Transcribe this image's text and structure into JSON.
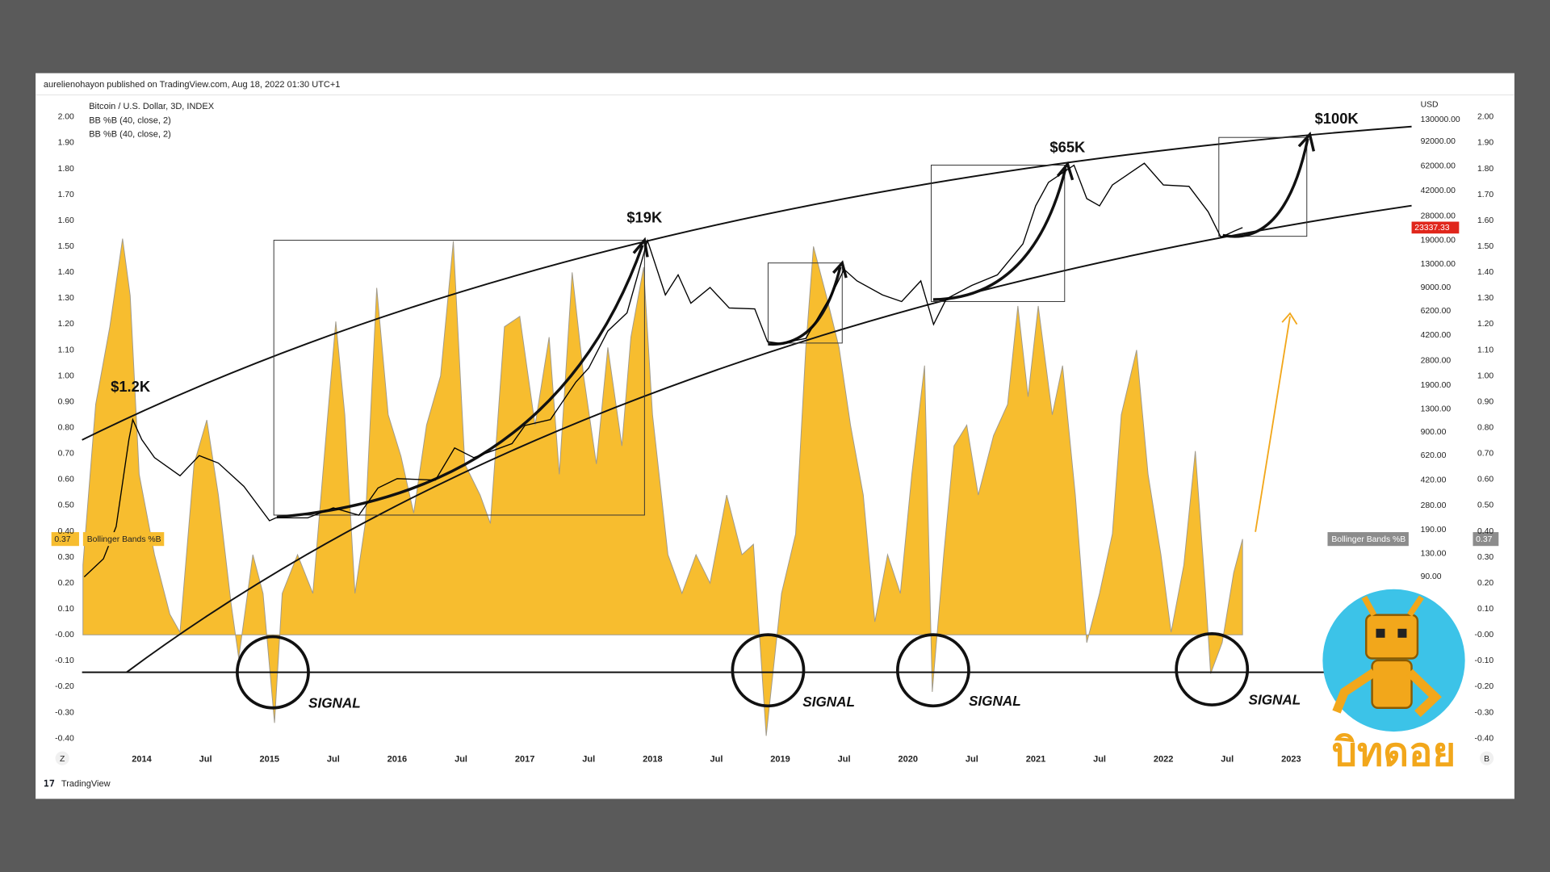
{
  "header": "aurelienohayon published on TradingView.com, Aug 18, 2022 01:30 UTC+1",
  "footer": "TradingView",
  "logo_text": "บิทดอย",
  "axis_buttons": [
    "Z",
    "B"
  ],
  "chart_data": [
    {
      "type": "line",
      "ylog": true,
      "y_label": "USD",
      "xlim": [
        2013.2,
        2023.92
      ],
      "ylim": [
        5.6,
        181000
      ],
      "xticks": [
        2014,
        {
          "value": 2014.5,
          "label": "Jul"
        },
        2015,
        {
          "value": 2015.5,
          "label": "Jul"
        },
        2016,
        {
          "value": 2016.5,
          "label": "Jul"
        },
        2017,
        {
          "value": 2017.5,
          "label": "Jul"
        },
        2018,
        {
          "value": 2018.5,
          "label": "Jul"
        },
        2019,
        {
          "value": 2019.5,
          "label": "Jul"
        },
        2020,
        {
          "value": 2020.5,
          "label": "Jul"
        },
        2021,
        {
          "value": 2021.5,
          "label": "Jul"
        },
        2022,
        {
          "value": 2022.5,
          "label": "Jul"
        },
        2023
      ],
      "yticks": [
        {
          "value": 130000,
          "label": "130000.00"
        },
        {
          "value": 92000,
          "label": "92000.00"
        },
        {
          "value": 62000,
          "label": "62000.00"
        },
        {
          "value": 42000,
          "label": "42000.00"
        },
        {
          "value": 28000,
          "label": "28000.00"
        },
        {
          "value": 19000,
          "label": "19000.00"
        },
        {
          "value": 13000,
          "label": "13000.00"
        },
        {
          "value": 9000,
          "label": "9000.00"
        },
        {
          "value": 6200,
          "label": "6200.00"
        },
        {
          "value": 4200,
          "label": "4200.00"
        },
        {
          "value": 2800,
          "label": "2800.00"
        },
        {
          "value": 1900,
          "label": "1900.00"
        },
        {
          "value": 1300,
          "label": "1300.00"
        },
        {
          "value": 900,
          "label": "900.00"
        },
        {
          "value": 620,
          "label": "620.00"
        },
        {
          "value": 420,
          "label": "420.00"
        },
        {
          "value": 280,
          "label": "280.00"
        },
        {
          "value": 190,
          "label": "190.00"
        },
        {
          "value": 130,
          "label": "130.00"
        },
        {
          "value": 90,
          "label": "90.00"
        }
      ],
      "x": [
        2013.55,
        2013.7,
        2013.8,
        2013.9,
        2013.93,
        2014.0,
        2014.1,
        2014.3,
        2014.45,
        2014.6,
        2014.8,
        2015.0,
        2015.05,
        2015.3,
        2015.5,
        2015.7,
        2015.85,
        2016.0,
        2016.3,
        2016.45,
        2016.6,
        2016.9,
        2017.0,
        2017.2,
        2017.4,
        2017.5,
        2017.65,
        2017.8,
        2017.96,
        2018.1,
        2018.2,
        2018.3,
        2018.45,
        2018.6,
        2018.8,
        2018.9,
        2019.0,
        2019.2,
        2019.4,
        2019.5,
        2019.6,
        2019.8,
        2019.95,
        2020.1,
        2020.2,
        2020.3,
        2020.5,
        2020.7,
        2020.9,
        2021.0,
        2021.1,
        2021.3,
        2021.4,
        2021.5,
        2021.6,
        2021.85,
        2022.0,
        2022.2,
        2022.35,
        2022.45,
        2022.55,
        2022.62
      ],
      "series": [
        {
          "name": "Bitcoin / U.S. Dollar, 3D, INDEX",
          "color": "#000000",
          "values": [
            90,
            120,
            200,
            800,
            1100,
            800,
            600,
            450,
            620,
            550,
            380,
            220,
            230,
            230,
            270,
            240,
            370,
            430,
            420,
            700,
            600,
            750,
            1000,
            1100,
            2000,
            2500,
            4500,
            6000,
            19000,
            8000,
            11000,
            7000,
            9000,
            6500,
            6400,
            3800,
            3700,
            4000,
            8000,
            12000,
            10000,
            8000,
            7200,
            10000,
            5000,
            7500,
            9300,
            11000,
            18000,
            33000,
            48000,
            63000,
            37000,
            33000,
            46000,
            65000,
            46000,
            45000,
            30000,
            20000,
            22000,
            23337.33
          ]
        }
      ],
      "annotations": [
        "$1.2K",
        "$19K",
        "$65K",
        "$100K",
        "SIGNAL",
        "SIGNAL",
        "SIGNAL",
        "SIGNAL"
      ]
    },
    {
      "type": "area",
      "indicators": [
        "BB %B (40, close, 2)",
        "BB %B (40, close, 2)"
      ],
      "xlim": [
        2013.2,
        2023.92
      ],
      "ylim": [
        -0.45,
        2.07
      ],
      "yticks": [
        {
          "value": 2,
          "label": "2.00"
        },
        {
          "value": 1.9,
          "label": "1.90"
        },
        {
          "value": 1.8,
          "label": "1.80"
        },
        {
          "value": 1.7,
          "label": "1.70"
        },
        {
          "value": 1.6,
          "label": "1.60"
        },
        {
          "value": 1.5,
          "label": "1.50"
        },
        {
          "value": 1.4,
          "label": "1.40"
        },
        {
          "value": 1.3,
          "label": "1.30"
        },
        {
          "value": 1.2,
          "label": "1.20"
        },
        {
          "value": 1.1,
          "label": "1.10"
        },
        {
          "value": 1,
          "label": "1.00"
        },
        {
          "value": 0.9,
          "label": "0.90"
        },
        {
          "value": 0.8,
          "label": "0.80"
        },
        {
          "value": 0.7,
          "label": "0.70"
        },
        {
          "value": 0.6,
          "label": "0.60"
        },
        {
          "value": 0.5,
          "label": "0.50"
        },
        {
          "value": 0.4,
          "label": "0.40"
        },
        {
          "value": 0.3,
          "label": "0.30"
        },
        {
          "value": 0.2,
          "label": "0.20"
        },
        {
          "value": 0.1,
          "label": "0.10"
        },
        {
          "value": 0,
          "label": "-0.00"
        },
        {
          "value": -0.1,
          "label": "-0.10"
        },
        {
          "value": -0.2,
          "label": "-0.20"
        },
        {
          "value": -0.3,
          "label": "-0.30"
        },
        {
          "value": -0.4,
          "label": "-0.40"
        }
      ],
      "x": [
        2013.54,
        2013.64,
        2013.75,
        2013.85,
        2013.91,
        2013.98,
        2014.1,
        2014.22,
        2014.3,
        2014.41,
        2014.51,
        2014.6,
        2014.7,
        2014.76,
        2014.87,
        2014.95,
        2015.04,
        2015.1,
        2015.22,
        2015.34,
        2015.45,
        2015.52,
        2015.59,
        2015.67,
        2015.75,
        2015.84,
        2015.93,
        2016.03,
        2016.13,
        2016.23,
        2016.34,
        2016.44,
        2016.53,
        2016.65,
        2016.73,
        2016.84,
        2016.96,
        2017.08,
        2017.19,
        2017.27,
        2017.37,
        2017.46,
        2017.56,
        2017.65,
        2017.76,
        2017.83,
        2017.93,
        2018.0,
        2018.12,
        2018.23,
        2018.34,
        2018.45,
        2018.58,
        2018.7,
        2018.79,
        2018.89,
        2019.01,
        2019.12,
        2019.2,
        2019.26,
        2019.36,
        2019.46,
        2019.55,
        2019.65,
        2019.74,
        2019.84,
        2019.94,
        2020.03,
        2020.13,
        2020.19,
        2020.28,
        2020.36,
        2020.46,
        2020.55,
        2020.67,
        2020.78,
        2020.86,
        2020.94,
        2021.02,
        2021.13,
        2021.21,
        2021.31,
        2021.4,
        2021.5,
        2021.6,
        2021.67,
        2021.79,
        2021.88,
        2021.98,
        2022.06,
        2022.16,
        2022.25,
        2022.33,
        2022.37,
        2022.46,
        2022.55,
        2022.62
      ],
      "series": [
        {
          "name": "Bollinger Bands %B",
          "color": "#f7bd2f",
          "values": [
            0.27,
            0.89,
            1.19,
            1.53,
            1.31,
            0.62,
            0.31,
            0.08,
            0.01,
            0.66,
            0.83,
            0.54,
            0.12,
            -0.09,
            0.31,
            0.16,
            -0.34,
            0.16,
            0.31,
            0.16,
            0.81,
            1.21,
            0.85,
            0.16,
            0.43,
            1.34,
            0.85,
            0.69,
            0.47,
            0.81,
            1.0,
            1.52,
            0.66,
            0.54,
            0.43,
            1.19,
            1.23,
            0.81,
            1.15,
            0.62,
            1.4,
            1.0,
            0.66,
            1.11,
            0.73,
            1.15,
            1.42,
            0.85,
            0.31,
            0.16,
            0.31,
            0.2,
            0.54,
            0.31,
            0.35,
            -0.39,
            0.16,
            0.39,
            1.11,
            1.5,
            1.31,
            1.11,
            0.81,
            0.54,
            0.05,
            0.31,
            0.16,
            0.62,
            1.04,
            -0.22,
            0.31,
            0.73,
            0.81,
            0.54,
            0.77,
            0.89,
            1.27,
            0.92,
            1.27,
            0.85,
            1.04,
            0.54,
            -0.03,
            0.16,
            0.39,
            0.85,
            1.1,
            0.62,
            0.31,
            0.01,
            0.27,
            0.71,
            0.16,
            -0.15,
            -0.03,
            0.24,
            0.37
          ]
        }
      ]
    }
  ]
}
